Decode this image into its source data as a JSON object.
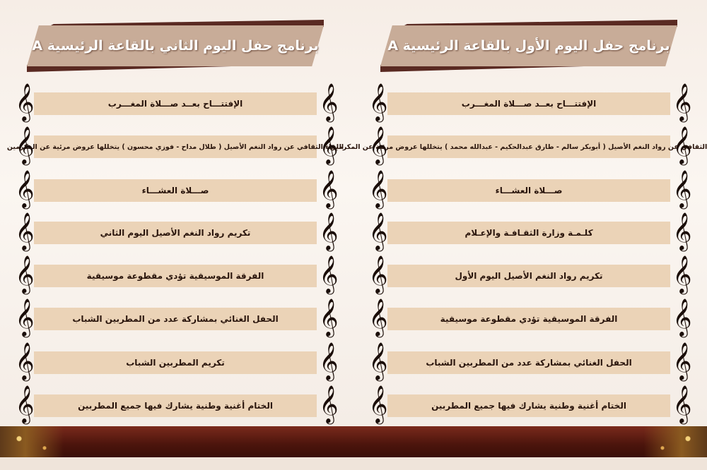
{
  "day1": {
    "title": "برنامج حفل اليوم الأول بالقاعة الرئيسية A",
    "items": [
      "الإفتتـــاح بعــد صـــلاة المغـــرب",
      "اللقاء الثقافي عن رواد النغم الأصيل ( أبوبكر سالم - طارق عبدالحكيم - عبدالله محمد ) يتخللها عروض مرئية عن المكرمين",
      "صـــلاة العشـــاء",
      "كلـمـة وزارة الثقـافـة والإعـلام",
      "تكريم رواد النغم الأصيل اليوم الأول",
      "الفرقة الموسيقية تؤدي مقطوعة موسيقية",
      "الحفل الغنائي بمشاركة عدد من المطربين الشباب",
      "الختام أغنية وطنية يشارك فيها جميع المطربين"
    ]
  },
  "day2": {
    "title": "برنامج حفل اليوم الثاني بالقاعة الرئيسية A",
    "items": [
      "الإفتتـــاح بعــد صـــلاة المغـــرب",
      "اللقاء الثقافي عن رواد النغم الأصيل ( طلال مداح - فوزي محسون ) يتخللها عروض مرئية عن المكرمين",
      "صـــلاة العشـــاء",
      "تكريم رواد النغم الأصيل اليوم الثاني",
      "الفرقة الموسيقية تؤدي مقطوعة موسيقية",
      "الحفل الغنائي بمشاركة عدد من المطربين الشباب",
      "تكريم المطربين الشباب",
      "الختام أغنية وطنية يشارك فيها جميع المطربين"
    ]
  },
  "icons": {
    "row_marker": "treble-clef-icon"
  },
  "colors": {
    "banner": "#c8ac98",
    "banner_dark": "#5a2a22",
    "row": "#ebd3b7",
    "footer": "#4b140c"
  }
}
